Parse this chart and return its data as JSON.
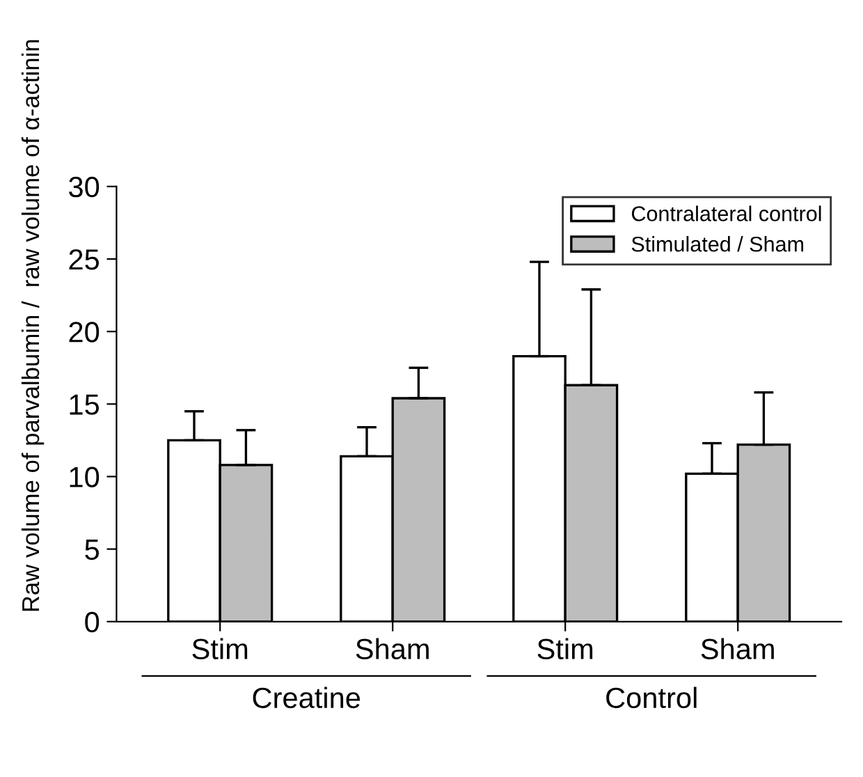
{
  "chart_data": {
    "type": "bar",
    "ylabel": "Raw volume of parvalbumin /  raw volume of α-actinin",
    "categories": [
      "Stim",
      "Sham",
      "Stim",
      "Sham"
    ],
    "series": [
      {
        "name": "Contralateral control",
        "color": "#ffffff",
        "values": [
          12.5,
          11.4,
          18.3,
          10.2
        ],
        "errors": [
          [
            12.5,
            14.5
          ],
          [
            11.4,
            13.4
          ],
          [
            18.3,
            24.8
          ],
          [
            10.2,
            12.3
          ]
        ]
      },
      {
        "name": "Stimulated / Sham",
        "color": "#bdbdbd",
        "values": [
          10.8,
          15.4,
          16.3,
          12.2
        ],
        "errors": [
          [
            10.8,
            13.2
          ],
          [
            15.4,
            17.5
          ],
          [
            16.3,
            22.9
          ],
          [
            12.2,
            15.8
          ]
        ]
      }
    ],
    "annotations": [
      "Creatine",
      "Control"
    ],
    "ylim": [
      0,
      30
    ],
    "yticks": [
      0,
      5,
      10,
      15,
      20,
      25,
      30
    ],
    "grid": false,
    "legend": "top right"
  }
}
